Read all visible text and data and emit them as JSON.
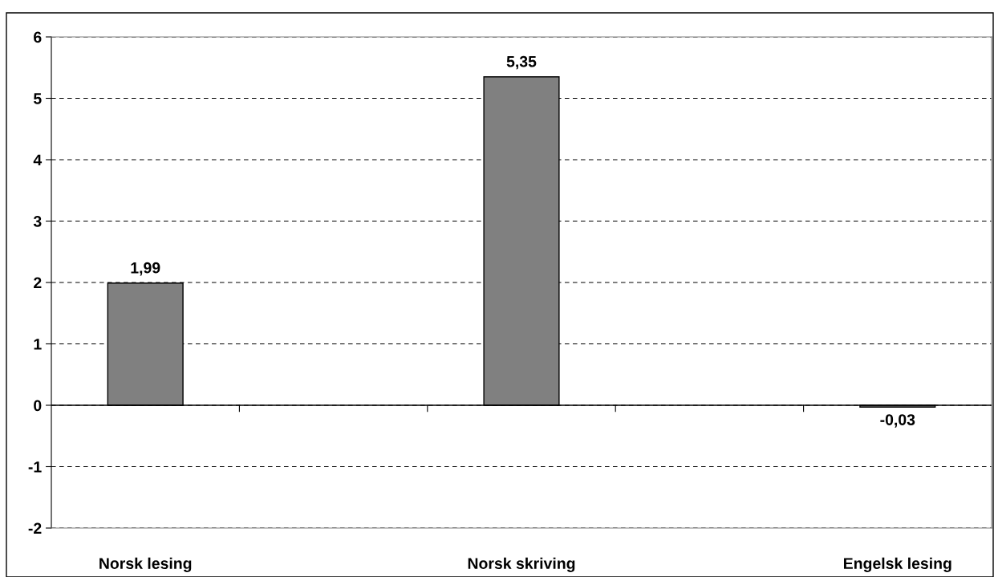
{
  "chart_data": {
    "type": "bar",
    "categories": [
      "Norsk lesing",
      null,
      "Norsk skriving",
      null,
      "Engelsk lesing"
    ],
    "values": [
      1.99,
      null,
      5.35,
      null,
      -0.03
    ],
    "value_labels": [
      "1,99",
      null,
      "5,35",
      null,
      "-0,03"
    ],
    "color": "#808080",
    "ylim": [
      -2,
      6
    ],
    "yticks": [
      -2,
      -1,
      0,
      1,
      2,
      3,
      4,
      5,
      6
    ],
    "grid": "y"
  }
}
